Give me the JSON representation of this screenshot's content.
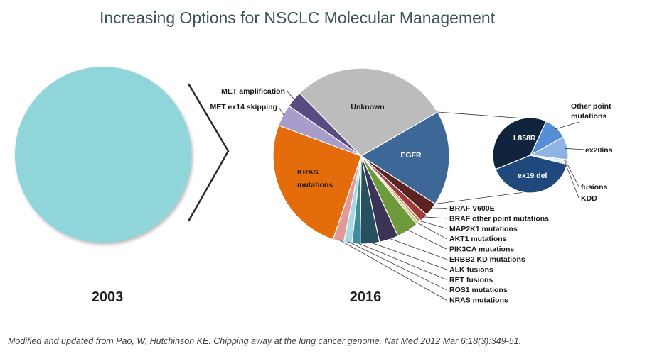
{
  "title": "Increasing Options for NSCLC Molecular Management",
  "caption": "Modified and updated from Pao, W, Hutchinson KE. Chipping away at the lung cancer genome. Nat Med 2012 Mar 6;18(3):349-51.",
  "chart_data": [
    {
      "type": "pie",
      "title": "2003",
      "slices": [
        {
          "label": "",
          "value": 100,
          "color": "#8fd5da"
        }
      ]
    },
    {
      "type": "pie",
      "title": "2016",
      "slices": [
        {
          "label": "EGFR",
          "value": 17.5,
          "color": "#3d6797"
        },
        {
          "label": "BRAF V600E",
          "value": 2.5,
          "color": "#5c2323"
        },
        {
          "label": "BRAF other point mutations",
          "value": 1.5,
          "color": "#a23b3b"
        },
        {
          "label": "MAP2K1 mutations",
          "value": 0.5,
          "color": "#c59560"
        },
        {
          "label": "AKT1 mutations",
          "value": 0.5,
          "color": "#c9c77c"
        },
        {
          "label": "PIK3CA mutations",
          "value": 4,
          "color": "#6f9a3c"
        },
        {
          "label": "ERBB2 KD mutations",
          "value": 3.5,
          "color": "#3c3456"
        },
        {
          "label": "ALK fusions",
          "value": 3.5,
          "color": "#26505e"
        },
        {
          "label": "RET fusions",
          "value": 1.5,
          "color": "#3a8ea0"
        },
        {
          "label": "ROS1 mutations",
          "value": 1.5,
          "color": "#a8d8e2"
        },
        {
          "label": "NRAS mutations",
          "value": 2,
          "color": "#e09a9a"
        },
        {
          "label": "KRAS mutations",
          "value": 25.5,
          "color": "#e46c0a"
        },
        {
          "label": "MET ex14 skipping",
          "value": 4,
          "color": "#a89ccb"
        },
        {
          "label": "MET amplification",
          "value": 3,
          "color": "#5a4a82"
        },
        {
          "label": "Unknown",
          "value": 29,
          "color": "#bcbcbc"
        }
      ]
    },
    {
      "type": "pie",
      "title": "EGFR",
      "slices": [
        {
          "label": "L858R",
          "value": 38,
          "color": "#10243e"
        },
        {
          "label": "Other point mutations",
          "value": 10,
          "color": "#558ed5"
        },
        {
          "label": "ex20ins",
          "value": 10,
          "color": "#8db4e2"
        },
        {
          "label": "fusions",
          "value": 1,
          "color": "#c6d9f0"
        },
        {
          "label": "KDD",
          "value": 1,
          "color": "#dce6f2"
        },
        {
          "label": "ex19 del",
          "value": 40,
          "color": "#1f497d"
        }
      ]
    }
  ]
}
